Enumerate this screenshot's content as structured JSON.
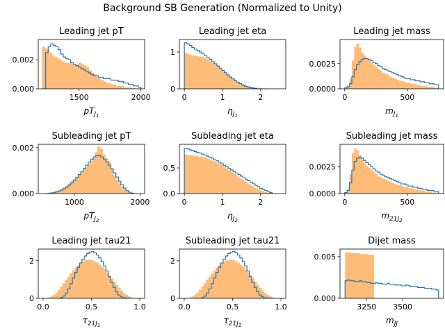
{
  "figure": {
    "suptitle": "Background SB Generation (Normalized to Unity)"
  },
  "colors": {
    "filled": "#ffbb78",
    "step": "#1f77b4"
  },
  "chart_data": [
    {
      "type": "histogram",
      "title": "Leading jet pT",
      "xlabel_base": "pT",
      "xlabel_sub": "J",
      "xlabel_subsub": "1",
      "xlim": [
        1170,
        2030
      ],
      "ylim": [
        0,
        0.0034
      ],
      "xticks": [
        {
          "v": 1500,
          "label": "1500"
        },
        {
          "v": 2000,
          "label": "2000"
        }
      ],
      "yticks": [
        {
          "v": 0,
          "label": "0.000"
        },
        {
          "v": 0.002,
          "label": "0.002"
        }
      ],
      "filled": {
        "edges": [
          1200,
          2000
        ],
        "values": [
          0.0029,
          0.0028,
          0.0027,
          0.0025,
          0.0023,
          0.0022,
          0.0021,
          0.002,
          0.0019,
          0.0018,
          0.0018,
          0.0018,
          0.0017,
          0.0016,
          0.0017,
          0.0018,
          0.0017,
          0.0016,
          0.0015,
          0.0013,
          0.0011,
          0.001,
          0.0008,
          0.0007,
          0.0006,
          0.0005,
          0.0004,
          0.0004,
          0.0003,
          0.0003,
          0.0002,
          0.0002,
          0.0002,
          0.0001,
          0.0001,
          0.0001,
          5e-05,
          5e-05,
          3e-05,
          2e-05
        ]
      },
      "step": {
        "edges": [
          1230,
          2000
        ],
        "values": [
          0.0025,
          0.0029,
          0.0031,
          0.003,
          0.0029,
          0.0027,
          0.0024,
          0.0022,
          0.0021,
          0.002,
          0.0018,
          0.0017,
          0.0016,
          0.0015,
          0.0014,
          0.0013,
          0.0012,
          0.0011,
          0.001,
          0.0009,
          0.0009,
          0.0008,
          0.0008,
          0.0007,
          0.0007,
          0.0007,
          0.0006,
          0.0006,
          0.0006,
          0.0005,
          0.0005,
          0.0004,
          0.0004,
          0.0003,
          0.0003,
          0.0002,
          0.0002,
          0.0001
        ]
      }
    },
    {
      "type": "histogram",
      "title": "Leading jet eta",
      "xlabel_base": "η",
      "xlabel_sub": "J",
      "xlabel_subsub": "1",
      "xlim": [
        -0.13,
        2.66
      ],
      "ylim": [
        0,
        1.34
      ],
      "xticks": [
        {
          "v": 0,
          "label": "0"
        },
        {
          "v": 1,
          "label": "1"
        },
        {
          "v": 2,
          "label": "2"
        }
      ],
      "yticks": [
        {
          "v": 0,
          "label": "0"
        },
        {
          "v": 1,
          "label": "1"
        }
      ],
      "filled": {
        "edges": [
          0,
          2.4
        ],
        "values": [
          0.98,
          0.95,
          0.93,
          0.91,
          0.9,
          0.89,
          0.88,
          0.87,
          0.85,
          0.82,
          0.79,
          0.75,
          0.7,
          0.65,
          0.6,
          0.55,
          0.5,
          0.45,
          0.4,
          0.35,
          0.31,
          0.27,
          0.23,
          0.19,
          0.16,
          0.13,
          0.1,
          0.08,
          0.06,
          0.05,
          0.04,
          0.03,
          0.025,
          0.02,
          0.015,
          0.01,
          0.008,
          0.006,
          0.004,
          0.003
        ]
      },
      "step": {
        "edges": [
          0,
          1.9
        ],
        "values": [
          1.25,
          1.22,
          1.18,
          1.12,
          1.08,
          1.04,
          1.0,
          0.95,
          0.9,
          0.85,
          0.8,
          0.74,
          0.68,
          0.62,
          0.56,
          0.5,
          0.44,
          0.38,
          0.32,
          0.27,
          0.22,
          0.18,
          0.14,
          0.1,
          0.07,
          0.05,
          0.03,
          0.02,
          0.01
        ]
      }
    },
    {
      "type": "histogram",
      "title": "Leading jet mass",
      "xlabel_base": "m",
      "xlabel_sub": "J",
      "xlabel_subsub": "1",
      "xlim": [
        -38,
        790
      ],
      "ylim": [
        0,
        0.0049
      ],
      "xticks": [
        {
          "v": 0,
          "label": "0"
        },
        {
          "v": 500,
          "label": "500"
        }
      ],
      "yticks": [
        {
          "v": 0,
          "label": "0.0000"
        },
        {
          "v": 0.0025,
          "label": "0.0025"
        }
      ],
      "filled": {
        "edges": [
          0,
          750
        ],
        "values": [
          0.0001,
          0.0003,
          0.001,
          0.0028,
          0.0042,
          0.0045,
          0.0041,
          0.0036,
          0.0033,
          0.003,
          0.0028,
          0.0026,
          0.0024,
          0.0022,
          0.002,
          0.0018,
          0.0016,
          0.0015,
          0.0014,
          0.0012,
          0.0011,
          0.001,
          0.0009,
          0.0008,
          0.0008,
          0.0007,
          0.0006,
          0.0006,
          0.0005,
          0.0005,
          0.0004,
          0.0004,
          0.0003,
          0.0003,
          0.0003,
          0.0002,
          0.0002,
          0.0002,
          0.0001,
          0.0001
        ]
      },
      "step": {
        "edges": [
          0,
          750
        ],
        "values": [
          0.0001,
          0.0002,
          0.0005,
          0.0012,
          0.0019,
          0.0024,
          0.0027,
          0.0029,
          0.003,
          0.003,
          0.0029,
          0.0028,
          0.0026,
          0.0025,
          0.0023,
          0.0022,
          0.002,
          0.0019,
          0.0018,
          0.0017,
          0.0016,
          0.0015,
          0.0014,
          0.0013,
          0.0012,
          0.0011,
          0.001,
          0.001,
          0.0009,
          0.0009,
          0.0008,
          0.0008,
          0.0007,
          0.0007,
          0.0006,
          0.0006,
          0.0005,
          0.0005,
          0.0004,
          0.0004
        ]
      }
    },
    {
      "type": "histogram",
      "title": "Subleading jet pT",
      "xlabel_base": "pT",
      "xlabel_sub": "J",
      "xlabel_subsub": "2",
      "xlim": [
        450,
        2070
      ],
      "ylim": [
        0,
        0.00215
      ],
      "xticks": [
        {
          "v": 1000,
          "label": "1000"
        },
        {
          "v": 2000,
          "label": "2000"
        }
      ],
      "yticks": [
        {
          "v": 0,
          "label": "0.000"
        },
        {
          "v": 0.002,
          "label": "0.002"
        }
      ],
      "filled": {
        "edges": [
          550,
          1950
        ],
        "values": [
          2e-05,
          4e-05,
          6e-05,
          9e-05,
          0.00013,
          0.00018,
          0.00023,
          0.00029,
          0.00036,
          0.00044,
          0.00053,
          0.00063,
          0.00074,
          0.00086,
          0.00098,
          0.00111,
          0.00124,
          0.00138,
          0.00154,
          0.0018,
          0.00205,
          0.00195,
          0.0017,
          0.00155,
          0.0014,
          0.0011,
          0.0008,
          0.0006,
          0.00045,
          0.0003,
          0.0002,
          0.00012,
          7e-05,
          4e-05,
          2e-05
        ]
      },
      "step": {
        "edges": [
          600,
          1900
        ],
        "values": [
          1e-05,
          2e-05,
          4e-05,
          7e-05,
          0.0001,
          0.00015,
          0.00021,
          0.00028,
          0.00037,
          0.00047,
          0.00058,
          0.0007,
          0.00083,
          0.00096,
          0.0011,
          0.00124,
          0.00138,
          0.0015,
          0.0016,
          0.00165,
          0.00166,
          0.0016,
          0.0015,
          0.00138,
          0.00124,
          0.00108,
          0.0009,
          0.00072,
          0.00054,
          0.00038,
          0.00024,
          0.00013,
          6e-05,
          2e-05
        ]
      }
    },
    {
      "type": "histogram",
      "title": "Subleading jet eta",
      "xlabel_base": "η",
      "xlabel_sub": "J",
      "xlabel_subsub": "2",
      "xlim": [
        -0.13,
        2.66
      ],
      "ylim": [
        0,
        0.96
      ],
      "xticks": [
        {
          "v": 0,
          "label": "0"
        },
        {
          "v": 1,
          "label": "1"
        },
        {
          "v": 2,
          "label": "2"
        }
      ],
      "yticks": [
        {
          "v": 0,
          "label": "0.0"
        },
        {
          "v": 0.5,
          "label": "0.5"
        }
      ],
      "filled": {
        "edges": [
          0,
          2.4
        ],
        "values": [
          0.76,
          0.75,
          0.75,
          0.74,
          0.74,
          0.73,
          0.72,
          0.72,
          0.71,
          0.7,
          0.68,
          0.66,
          0.64,
          0.62,
          0.6,
          0.57,
          0.55,
          0.52,
          0.49,
          0.46,
          0.43,
          0.4,
          0.37,
          0.33,
          0.3,
          0.27,
          0.24,
          0.21,
          0.18,
          0.15,
          0.12,
          0.1,
          0.08,
          0.06,
          0.04,
          0.03,
          0.02,
          0.015,
          0.01,
          0.005
        ]
      },
      "step": {
        "edges": [
          0,
          2.3
        ],
        "values": [
          0.88,
          0.87,
          0.85,
          0.84,
          0.82,
          0.8,
          0.79,
          0.77,
          0.75,
          0.73,
          0.71,
          0.69,
          0.66,
          0.64,
          0.61,
          0.58,
          0.55,
          0.52,
          0.49,
          0.46,
          0.43,
          0.4,
          0.37,
          0.34,
          0.31,
          0.28,
          0.25,
          0.22,
          0.19,
          0.16,
          0.13,
          0.1,
          0.08,
          0.06,
          0.04,
          0.02
        ]
      }
    },
    {
      "type": "histogram",
      "title": "Subleading jet mass",
      "xlabel_base": "m",
      "xlabel_sub": "21J",
      "xlabel_subsub": "2",
      "xlim": [
        -38,
        790
      ],
      "ylim": [
        0,
        0.0046
      ],
      "xticks": [
        {
          "v": 0,
          "label": "0"
        },
        {
          "v": 500,
          "label": "500"
        }
      ],
      "yticks": [
        {
          "v": 0,
          "label": "0.0000"
        },
        {
          "v": 0.0025,
          "label": "0.0025"
        }
      ],
      "filled": {
        "edges": [
          0,
          750
        ],
        "values": [
          0.0001,
          0.0004,
          0.0018,
          0.0038,
          0.0042,
          0.004,
          0.0036,
          0.0032,
          0.0029,
          0.0026,
          0.0024,
          0.0022,
          0.002,
          0.0018,
          0.0016,
          0.0015,
          0.0014,
          0.0013,
          0.0012,
          0.0011,
          0.001,
          0.0009,
          0.0008,
          0.0008,
          0.0007,
          0.0006,
          0.0006,
          0.0005,
          0.0005,
          0.0004,
          0.0004,
          0.0003,
          0.0003,
          0.0003,
          0.0002,
          0.0002,
          0.0002,
          0.0001,
          0.0001,
          0.0001
        ]
      },
      "step": {
        "edges": [
          0,
          750
        ],
        "values": [
          0.0001,
          0.0003,
          0.001,
          0.0022,
          0.003,
          0.0033,
          0.0034,
          0.0033,
          0.0031,
          0.0029,
          0.0027,
          0.0025,
          0.0023,
          0.0021,
          0.002,
          0.0018,
          0.0017,
          0.0016,
          0.0015,
          0.0014,
          0.0013,
          0.0012,
          0.0011,
          0.001,
          0.0009,
          0.0009,
          0.0008,
          0.0007,
          0.0007,
          0.0006,
          0.0006,
          0.0005,
          0.0005,
          0.0004,
          0.0004,
          0.0003,
          0.0003,
          0.0003,
          0.0002,
          0.0002
        ]
      }
    },
    {
      "type": "histogram",
      "title": "Leading jet tau21",
      "xlabel_base": "τ",
      "xlabel_sub": "21J",
      "xlabel_subsub": "1",
      "xlim": [
        -0.05,
        1.05
      ],
      "ylim": [
        0,
        2.62
      ],
      "xticks": [
        {
          "v": 0,
          "label": "0.0"
        },
        {
          "v": 0.5,
          "label": "0.5"
        },
        {
          "v": 1,
          "label": "1.0"
        }
      ],
      "yticks": [
        {
          "v": 0,
          "label": "0"
        },
        {
          "v": 2,
          "label": "2"
        }
      ],
      "filled": {
        "edges": [
          0.05,
          1.0
        ],
        "values": [
          0.05,
          0.1,
          0.18,
          0.3,
          0.45,
          0.62,
          0.8,
          0.98,
          1.15,
          1.32,
          1.48,
          1.62,
          1.75,
          1.86,
          1.95,
          2.02,
          2.05,
          2.05,
          2.02,
          1.96,
          1.88,
          1.78,
          1.66,
          1.53,
          1.38,
          1.22,
          1.05,
          0.88,
          0.71,
          0.55,
          0.41,
          0.28,
          0.18,
          0.1,
          0.05,
          0.02,
          0.01,
          0.005
        ]
      },
      "step": {
        "edges": [
          0.18,
          0.92
        ],
        "values": [
          0.04,
          0.12,
          0.28,
          0.5,
          0.78,
          1.08,
          1.38,
          1.65,
          1.88,
          2.08,
          2.25,
          2.38,
          2.46,
          2.5,
          2.42,
          2.3,
          2.15,
          1.95,
          1.72,
          1.45,
          1.15,
          0.85,
          0.58,
          0.35,
          0.18,
          0.08,
          0.03,
          0.01,
          0.005,
          0.002
        ]
      }
    },
    {
      "type": "histogram",
      "title": "Subleading jet tau21",
      "xlabel_base": "τ",
      "xlabel_sub": "21J",
      "xlabel_subsub": "2",
      "xlim": [
        -0.05,
        1.05
      ],
      "ylim": [
        0,
        2.62
      ],
      "xticks": [
        {
          "v": 0,
          "label": "0.0"
        },
        {
          "v": 0.5,
          "label": "0.5"
        },
        {
          "v": 1,
          "label": "1.0"
        }
      ],
      "yticks": [
        {
          "v": 0,
          "label": "0"
        },
        {
          "v": 2,
          "label": "2"
        }
      ],
      "filled": {
        "edges": [
          0.05,
          1.0
        ],
        "values": [
          0.05,
          0.1,
          0.18,
          0.3,
          0.45,
          0.62,
          0.8,
          0.98,
          1.15,
          1.32,
          1.48,
          1.62,
          1.75,
          1.86,
          1.95,
          2.02,
          2.05,
          2.05,
          2.02,
          1.96,
          1.88,
          1.78,
          1.66,
          1.53,
          1.38,
          1.22,
          1.05,
          0.88,
          0.71,
          0.55,
          0.41,
          0.28,
          0.18,
          0.1,
          0.05,
          0.02,
          0.01,
          0.005
        ]
      },
      "step": {
        "edges": [
          0.18,
          0.92
        ],
        "values": [
          0.04,
          0.12,
          0.28,
          0.5,
          0.78,
          1.08,
          1.38,
          1.65,
          1.88,
          2.08,
          2.25,
          2.38,
          2.46,
          2.5,
          2.42,
          2.3,
          2.15,
          1.95,
          1.72,
          1.45,
          1.15,
          0.85,
          0.58,
          0.35,
          0.18,
          0.08,
          0.03,
          0.01,
          0.005,
          0.002
        ]
      }
    },
    {
      "type": "histogram",
      "title": "Dijet mass",
      "xlabel_base": "m",
      "xlabel_sub": "JJ",
      "xlabel_subsub": "",
      "xlim": [
        3065,
        3785
      ],
      "ylim": [
        0,
        0.0059
      ],
      "xticks": [
        {
          "v": 3250,
          "label": "3250"
        },
        {
          "v": 3500,
          "label": "3500"
        }
      ],
      "yticks": [
        {
          "v": 0,
          "label": "0.000"
        },
        {
          "v": 0.005,
          "label": "0.005"
        }
      ],
      "filled": {
        "edges": [
          3100,
          3300
        ],
        "values": [
          0.0055,
          0.0055,
          0.0054,
          0.0054,
          0.0054,
          0.0053,
          0.0053,
          0.0053,
          0.0052,
          0.0052
        ]
      },
      "step": {
        "edges": [
          3100,
          3750
        ],
        "values": [
          0.0021,
          0.0022,
          0.0021,
          0.0021,
          0.002,
          0.002,
          0.0021,
          0.002,
          0.002,
          0.0019,
          0.0019,
          0.0018,
          0.0018,
          0.0019,
          0.0018,
          0.0018,
          0.0017,
          0.0017,
          0.0018,
          0.0017,
          0.0017,
          0.0016,
          0.0016,
          0.0016,
          0.0015,
          0.0015,
          0.0016,
          0.0015,
          0.0014,
          0.0014,
          0.0014,
          0.0013,
          0.0013,
          0.0013,
          0.0012,
          0.0012,
          0.0012,
          0.0011,
          0.0011,
          0.001
        ]
      }
    }
  ]
}
